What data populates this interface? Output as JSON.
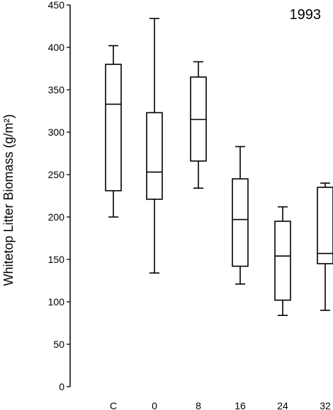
{
  "chart_data": {
    "type": "box",
    "panel_label": "1993",
    "ylabel": "Whitetop Litter Biomass (g/m²)",
    "xlabel": "",
    "ylim": [
      0,
      450
    ],
    "yticks": [
      0,
      50,
      100,
      150,
      200,
      250,
      300,
      350,
      400,
      450
    ],
    "categories": [
      "C",
      "0",
      "8",
      "16",
      "24",
      "32"
    ],
    "boxes": [
      {
        "category": "C",
        "min": 200,
        "q1": 231,
        "median": 333,
        "q3": 380,
        "max": 402
      },
      {
        "category": "0",
        "min": 134,
        "q1": 221,
        "median": 253,
        "q3": 323,
        "max": 434
      },
      {
        "category": "8",
        "min": 234,
        "q1": 266,
        "median": 315,
        "q3": 365,
        "max": 383
      },
      {
        "category": "16",
        "min": 121,
        "q1": 142,
        "median": 197,
        "q3": 245,
        "max": 283
      },
      {
        "category": "24",
        "min": 84,
        "q1": 102,
        "median": 154,
        "q3": 195,
        "max": 212
      },
      {
        "category": "32",
        "min": 90,
        "q1": 145,
        "median": 157,
        "q3": 235,
        "max": 240
      }
    ]
  }
}
